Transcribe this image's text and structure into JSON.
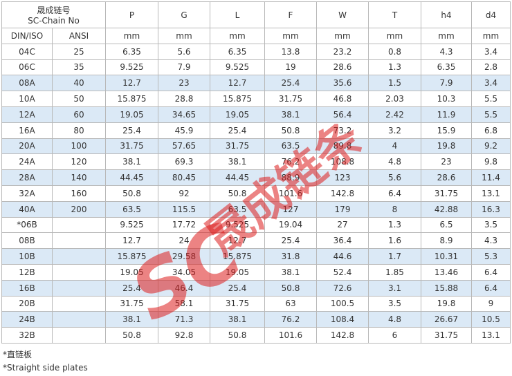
{
  "header": {
    "chain_no_cn": "晟成链号",
    "chain_no_en": "SC-Chain No",
    "standards": [
      "DIN/ISO",
      "ANSI"
    ],
    "columns": [
      "P",
      "G",
      "L",
      "F",
      "W",
      "T",
      "h4",
      "d4"
    ],
    "units": [
      "mm",
      "mm",
      "mm",
      "mm",
      "mm",
      "mm",
      "mm",
      "mm"
    ]
  },
  "rows": [
    [
      "04C",
      25,
      6.35,
      5.6,
      6.35,
      13.8,
      23.2,
      0.8,
      4.3,
      3.4
    ],
    [
      "06C",
      35,
      9.525,
      7.9,
      9.525,
      19,
      28.6,
      1.3,
      6.35,
      2.8
    ],
    [
      "08A",
      40,
      12.7,
      23,
      12.7,
      25.4,
      35.6,
      1.5,
      7.9,
      3.4
    ],
    [
      "10A",
      50,
      15.875,
      28.8,
      15.875,
      31.75,
      46.8,
      2.03,
      10.3,
      5.5
    ],
    [
      "12A",
      60,
      19.05,
      34.65,
      19.05,
      38.1,
      56.4,
      2.42,
      11.9,
      5.5
    ],
    [
      "16A",
      80,
      25.4,
      45.9,
      25.4,
      50.8,
      73.2,
      3.2,
      15.9,
      6.8
    ],
    [
      "20A",
      100,
      31.75,
      57.65,
      31.75,
      63.5,
      89.8,
      4,
      19.8,
      9.2
    ],
    [
      "24A",
      120,
      38.1,
      69.3,
      38.1,
      76.2,
      108.8,
      4.8,
      23,
      9.8
    ],
    [
      "28A",
      140,
      44.45,
      80.45,
      44.45,
      88.9,
      123,
      5.6,
      28.6,
      11.4
    ],
    [
      "32A",
      160,
      50.8,
      92,
      50.8,
      101.6,
      142.8,
      6.4,
      31.75,
      13.1
    ],
    [
      "40A",
      200,
      63.5,
      115.5,
      63.5,
      127,
      179,
      8,
      42.88,
      16.3
    ],
    [
      "*06B",
      null,
      9.525,
      17.72,
      9.525,
      19.04,
      27,
      1.3,
      6.5,
      3.5
    ],
    [
      "08B",
      null,
      12.7,
      24,
      12.7,
      25.4,
      36.4,
      1.6,
      8.9,
      4.3
    ],
    [
      "10B",
      null,
      15.875,
      29.58,
      15.875,
      31.8,
      44.6,
      1.7,
      10.31,
      5.3
    ],
    [
      "12B",
      null,
      19.05,
      34.05,
      19.05,
      38.1,
      52.4,
      1.85,
      13.46,
      6.4
    ],
    [
      "16B",
      null,
      25.4,
      46.4,
      25.4,
      50.8,
      72.6,
      3.1,
      15.88,
      6.4
    ],
    [
      "20B",
      null,
      31.75,
      58.1,
      31.75,
      63,
      100.5,
      3.5,
      19.8,
      9
    ],
    [
      "24B",
      null,
      38.1,
      71.3,
      38.1,
      76.2,
      108.4,
      4.8,
      26.67,
      10.5
    ],
    [
      "32B",
      null,
      50.8,
      92.8,
      50.8,
      101.6,
      142.8,
      6,
      31.75,
      13.1
    ]
  ],
  "notes": [
    "*直链板",
    "*Straight side plates"
  ],
  "watermark": {
    "logo": "SC",
    "text": "晟成链条"
  }
}
